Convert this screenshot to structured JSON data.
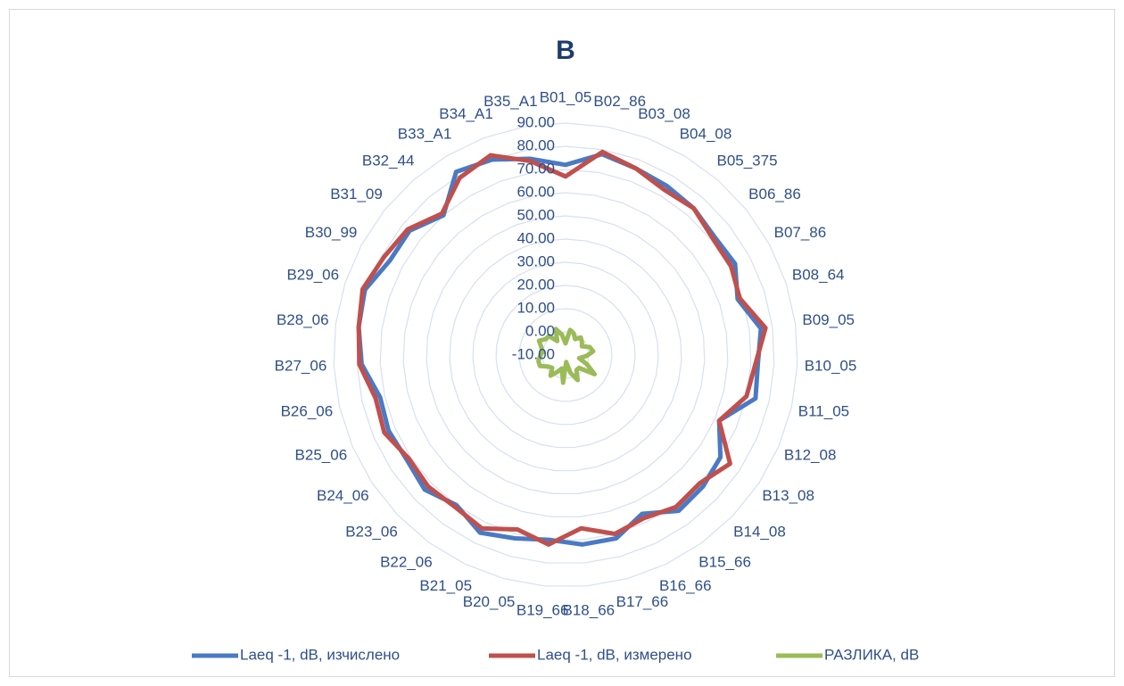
{
  "chart_data": {
    "type": "radar",
    "title": "B",
    "categories": [
      "B01_05",
      "B02_86",
      "B03_08",
      "B04_08",
      "B05_375",
      "B06_86",
      "B07_86",
      "B08_64",
      "B09_05",
      "B10_05",
      "B11_05",
      "B12_08",
      "B13_08",
      "B14_08",
      "B15_66",
      "B16_66",
      "B17_66",
      "B18_66",
      "B19_66",
      "B20_05",
      "B21_05",
      "B22_06",
      "B23_06",
      "B24_06",
      "B25_06",
      "B26_06",
      "B27_06",
      "B28_06",
      "B29_06",
      "B30_99",
      "B31_09",
      "B32_44",
      "B33_A1",
      "B34_A1",
      "B35_A1"
    ],
    "series": [
      {
        "name": "Laeq -1, dB, изчислено",
        "color": "#4a7ac4",
        "values": [
          72,
          78,
          76,
          75,
          74,
          72,
          73,
          68,
          75,
          73,
          74,
          62,
          70,
          72,
          73,
          66,
          72,
          72,
          70,
          72,
          75,
          70,
          74,
          72,
          73,
          72,
          78,
          80,
          81,
          76,
          76,
          70,
          82,
          80,
          76
        ]
      },
      {
        "name": "Laeq -1, dB, измерено",
        "color": "#c0504d",
        "values": [
          67,
          79,
          76,
          73,
          74,
          71,
          71,
          69,
          77,
          72,
          70,
          62,
          75,
          70,
          71,
          68,
          70,
          65,
          72,
          68,
          73,
          71,
          72,
          71,
          75,
          74,
          79,
          80,
          82,
          79,
          77,
          71,
          79,
          82,
          75
        ]
      },
      {
        "name": "РАЗЛИКА, dB",
        "color": "#9bbb59",
        "values": [
          -5,
          1,
          0,
          -2,
          0,
          -1,
          -2,
          1,
          2,
          -1,
          -4,
          0,
          5,
          -2,
          -2,
          2,
          -2,
          -7,
          2,
          -4,
          -2,
          1,
          -2,
          -1,
          2,
          2,
          1,
          0,
          1,
          3,
          1,
          1,
          -3,
          2,
          -1
        ]
      }
    ],
    "ylim": [
      -10,
      90
    ],
    "yticks": [
      {
        "value": -10,
        "label": "-10.00"
      },
      {
        "value": 0,
        "label": "0.00"
      },
      {
        "value": 10,
        "label": "10.00"
      },
      {
        "value": 20,
        "label": "20.00"
      },
      {
        "value": 30,
        "label": "30.00"
      },
      {
        "value": 40,
        "label": "40.00"
      },
      {
        "value": 50,
        "label": "50.00"
      },
      {
        "value": 60,
        "label": "60.00"
      },
      {
        "value": 70,
        "label": "70.00"
      },
      {
        "value": 80,
        "label": "80.00"
      },
      {
        "value": 90,
        "label": "90.00"
      }
    ],
    "grid": true,
    "legend": "bottom"
  }
}
